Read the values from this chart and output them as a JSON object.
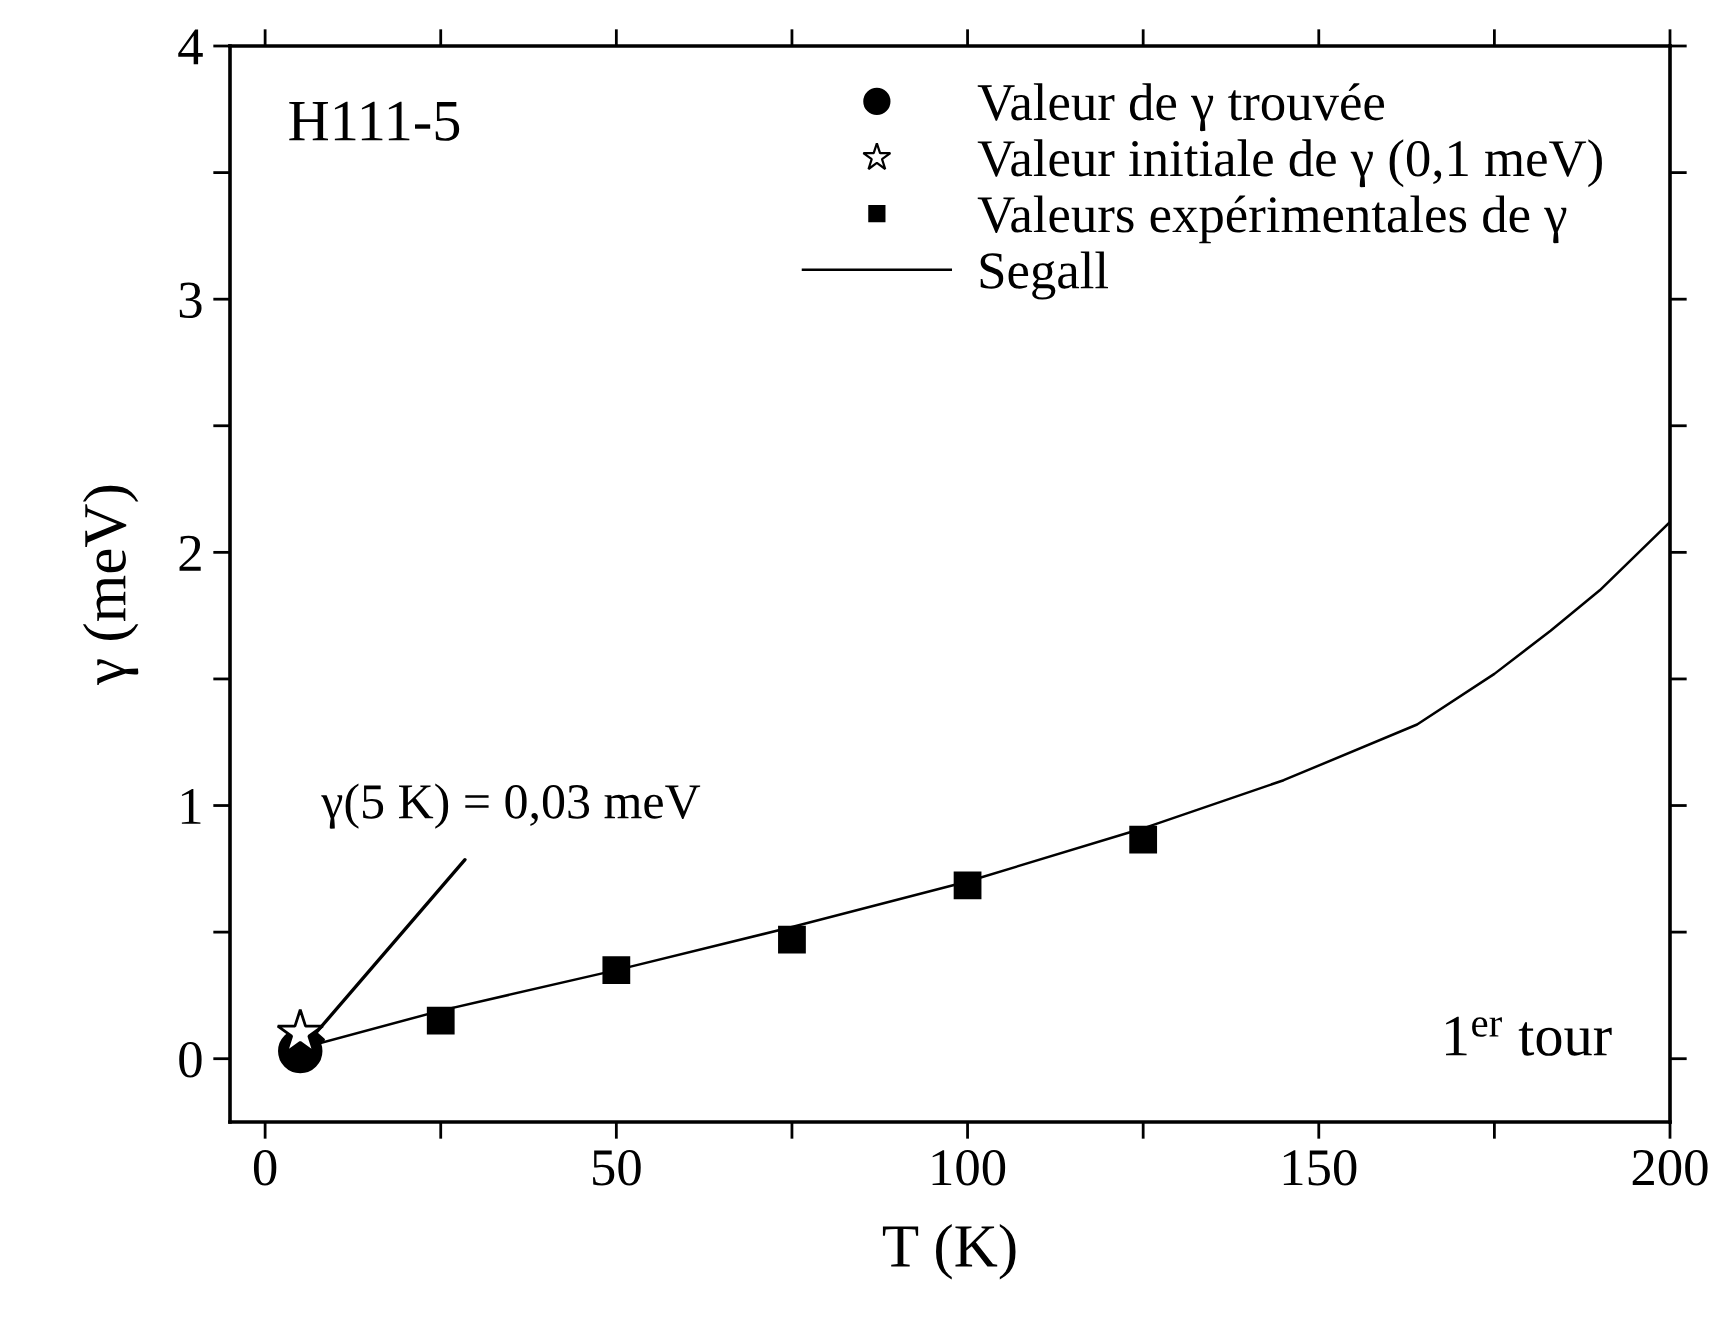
{
  "chart_data": {
    "type": "scatter",
    "xlabel": "T (K)",
    "ylabel": "γ (meV)",
    "xlim": [
      -5,
      200
    ],
    "xticks": [
      0,
      {
        "value": 25,
        "label": null
      },
      50,
      {
        "value": 75,
        "label": null
      },
      100,
      {
        "value": 125,
        "label": null
      },
      150,
      {
        "value": 175,
        "label": null
      },
      200
    ],
    "ylim": [
      -0.25,
      4
    ],
    "yticks": [
      0,
      {
        "value": 0.5,
        "label": null
      },
      1,
      {
        "value": 1.5,
        "label": null
      },
      2,
      {
        "value": 2.5,
        "label": null
      },
      3,
      {
        "value": 3.5,
        "label": null
      },
      4
    ],
    "grid": false,
    "legend": "top right",
    "series": [
      {
        "name": "Valeur de γ trouvée",
        "marker": "circle",
        "color": "#000000",
        "x": [
          5
        ],
        "values": [
          0.03
        ]
      },
      {
        "name": "Valeur initiale de γ (0,1 meV)",
        "marker": "star",
        "color": "#ffffff",
        "x": [
          5
        ],
        "values": [
          0.1
        ]
      },
      {
        "name": "Valeurs expérimentales de γ",
        "marker": "square",
        "color": "#000000",
        "x": [
          25,
          50,
          75,
          100,
          125
        ],
        "values": [
          0.15,
          0.35,
          0.47,
          0.685,
          0.865
        ]
      },
      {
        "name": "Segall",
        "type": "line",
        "marker": "none",
        "line_style": "solid",
        "color": "#000000",
        "x": [
          5,
          25,
          50,
          75,
          100,
          125,
          145,
          164,
          175,
          183,
          190,
          200
        ],
        "values": [
          0.04,
          0.19,
          0.35,
          0.52,
          0.7,
          0.91,
          1.1,
          1.32,
          1.52,
          1.69,
          1.85,
          2.12
        ]
      }
    ],
    "annotations": [
      "H111-5",
      "1$^{er}$ tour",
      {
        "text": "γ(5 K) = 0,03 meV",
        "x": 5,
        "y": 0.03
      }
    ]
  }
}
